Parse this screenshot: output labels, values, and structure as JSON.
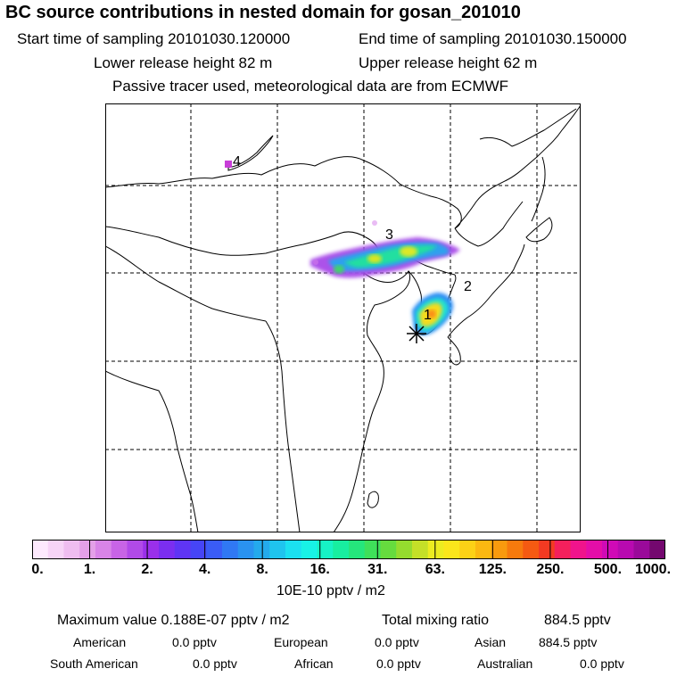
{
  "header": {
    "title": "BC  source contributions in nested domain for gosan_201010",
    "start_time": "Start time of sampling 20101030.120000",
    "end_time": "End time of sampling 20101030.150000",
    "lower_release": "Lower release height   82 m",
    "upper_release": "Upper release height   62 m",
    "note": "Passive tracer used, meteorological data are from ECMWF"
  },
  "map": {
    "labels": [
      {
        "id": "1",
        "text": "1"
      },
      {
        "id": "2",
        "text": "2"
      },
      {
        "id": "3",
        "text": "3"
      },
      {
        "id": "4",
        "text": "4"
      }
    ],
    "receptor_marker": "asterisk-marker"
  },
  "colorbar": {
    "colors": [
      "#fde9fd",
      "#f7d4f7",
      "#efbdf0",
      "#e4a0e8",
      "#d884e7",
      "#c864e6",
      "#b14ae8",
      "#9a30ea",
      "#7b2ef0",
      "#5f35f4",
      "#4645f6",
      "#3a5cf6",
      "#3078f4",
      "#2a92f0",
      "#24aaec",
      "#1fc4ee",
      "#1be0f0",
      "#18f2e6",
      "#17f2c5",
      "#18eea0",
      "#25e67c",
      "#3fe05a",
      "#66dc3e",
      "#95dc2e",
      "#c4e028",
      "#ecec20",
      "#fbe61b",
      "#fcd116",
      "#fbb811",
      "#f99a0e",
      "#f77a0d",
      "#f55a12",
      "#f33a22",
      "#f4205c",
      "#f0148c",
      "#e40ea8",
      "#d00ab6",
      "#b80ab0",
      "#9a0a9a",
      "#74086f"
    ],
    "ticks": [
      "0.",
      "1.",
      "2.",
      "4.",
      "8.",
      "16.",
      "31.",
      "63.",
      "125.",
      "250.",
      "500.",
      "1000."
    ],
    "units": "10E-10 pptv / m2"
  },
  "stats": {
    "max_value": "Maximum value  0.188E-07 pptv / m2",
    "total_mixing": "Total mixing ratio",
    "total_value": "884.5 pptv",
    "american_label": "American",
    "american_value": "0.0 pptv",
    "european_label": "European",
    "european_value": "0.0 pptv",
    "asian_label": "Asian",
    "asian_value": "884.5 pptv",
    "south_american_label": "South American",
    "south_american_value": "0.0 pptv",
    "african_label": "African",
    "african_value": "0.0 pptv",
    "australian_label": "Australian",
    "australian_value": "0.0 pptv"
  }
}
